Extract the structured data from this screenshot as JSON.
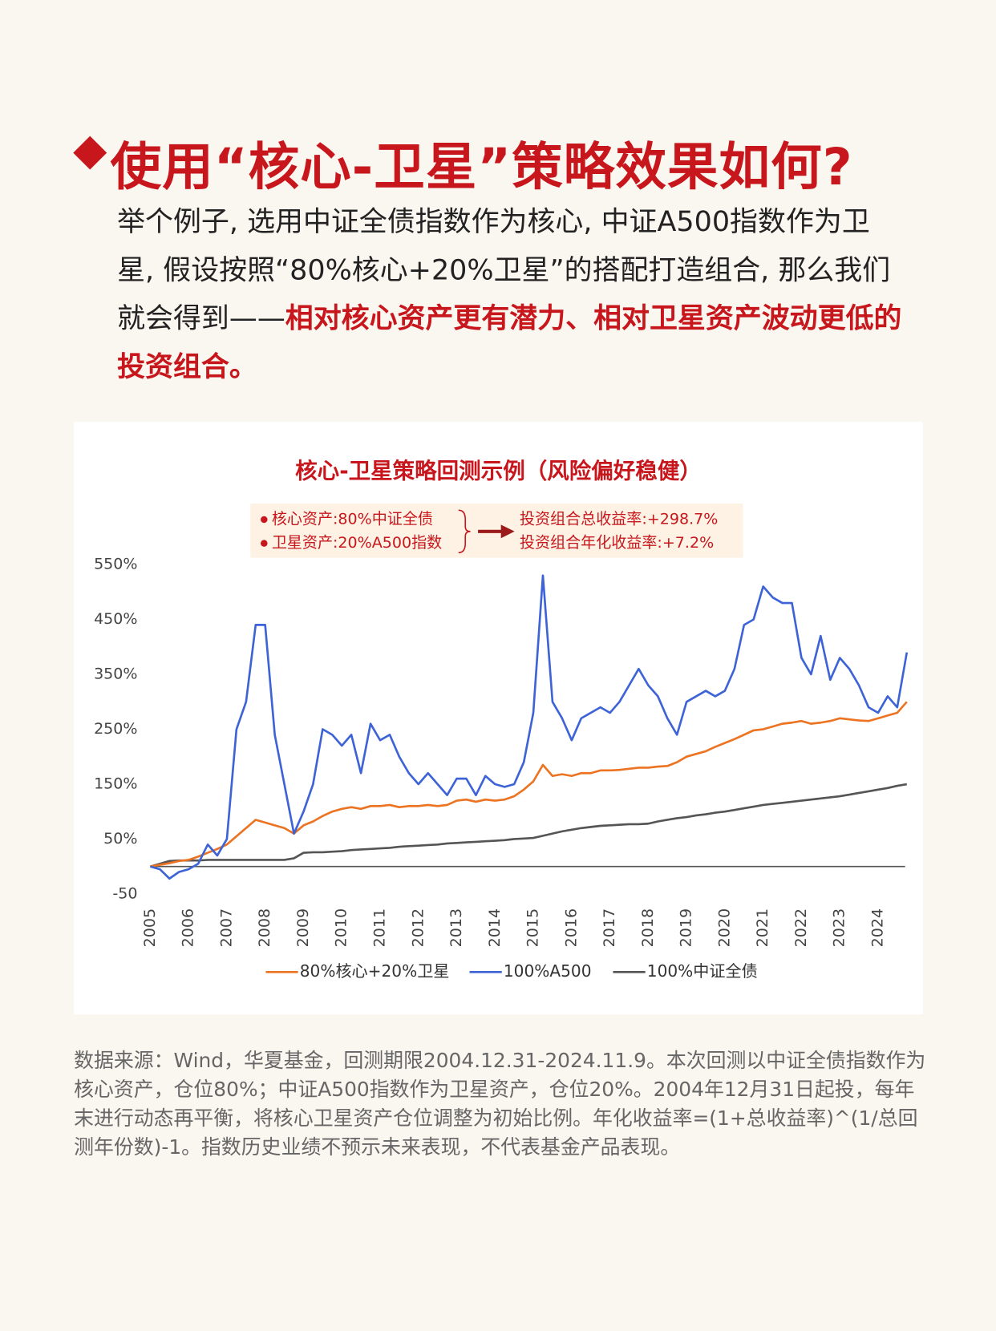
{
  "header": {
    "title": "使用“核心-卫星”策略效果如何?"
  },
  "intro": {
    "text": "举个例子, 选用中证全债指数作为核心, 中证A500指数作为卫星, 假设按照“80%核心+20%卫星”的搭配打造组合, 那么我们就会得到——",
    "highlight": "相对核心资产更有潜力、相对卫星资产波动更低的投资组合。"
  },
  "chart_data": {
    "type": "line",
    "title": "核心-卫星策略回测示例（风险偏好稳健）",
    "annotation": {
      "inputs": [
        "核心资产:80%中证全债",
        "卫星资产:20%A500指数"
      ],
      "results": [
        "投资组合总收益率:+298.7%",
        "投资组合年化收益率:+7.2%"
      ]
    },
    "x": [
      2005,
      2005.25,
      2005.5,
      2005.75,
      2006,
      2006.25,
      2006.5,
      2006.75,
      2007,
      2007.25,
      2007.5,
      2007.75,
      2008,
      2008.25,
      2008.5,
      2008.75,
      2009,
      2009.25,
      2009.5,
      2009.75,
      2010,
      2010.25,
      2010.5,
      2010.75,
      2011,
      2011.25,
      2011.5,
      2011.75,
      2012,
      2012.25,
      2012.5,
      2012.75,
      2013,
      2013.25,
      2013.5,
      2013.75,
      2014,
      2014.25,
      2014.5,
      2014.75,
      2015,
      2015.25,
      2015.5,
      2015.75,
      2016,
      2016.25,
      2016.5,
      2016.75,
      2017,
      2017.25,
      2017.5,
      2017.75,
      2018,
      2018.25,
      2018.5,
      2018.75,
      2019,
      2019.25,
      2019.5,
      2019.75,
      2020,
      2020.25,
      2020.5,
      2020.75,
      2021,
      2021.25,
      2021.5,
      2021.75,
      2022,
      2022.25,
      2022.5,
      2022.75,
      2023,
      2023.25,
      2023.5,
      2023.75,
      2024,
      2024.25,
      2024.5,
      2024.75
    ],
    "series": [
      {
        "name": "80%核心+20%卫星",
        "color": "#ec7322",
        "values": [
          0,
          3,
          6,
          10,
          12,
          18,
          25,
          32,
          40,
          55,
          70,
          85,
          80,
          75,
          70,
          60,
          75,
          82,
          92,
          100,
          105,
          108,
          105,
          110,
          110,
          112,
          108,
          110,
          110,
          112,
          110,
          112,
          120,
          122,
          118,
          122,
          120,
          122,
          128,
          140,
          155,
          185,
          165,
          168,
          165,
          170,
          170,
          175,
          175,
          176,
          178,
          180,
          180,
          182,
          183,
          190,
          200,
          205,
          210,
          218,
          225,
          232,
          240,
          248,
          250,
          255,
          260,
          262,
          265,
          260,
          262,
          265,
          270,
          268,
          266,
          265,
          270,
          275,
          280,
          300
        ]
      },
      {
        "name": "100%A500",
        "color": "#3d63d6",
        "values": [
          0,
          -5,
          -22,
          -10,
          -5,
          5,
          40,
          20,
          50,
          250,
          300,
          440,
          440,
          240,
          150,
          60,
          100,
          150,
          250,
          240,
          220,
          240,
          170,
          260,
          230,
          240,
          200,
          170,
          150,
          170,
          150,
          130,
          160,
          160,
          130,
          165,
          150,
          145,
          150,
          190,
          280,
          530,
          300,
          270,
          230,
          270,
          280,
          290,
          280,
          300,
          330,
          360,
          330,
          310,
          270,
          240,
          300,
          310,
          320,
          310,
          320,
          360,
          440,
          450,
          510,
          490,
          480,
          480,
          380,
          350,
          420,
          340,
          380,
          360,
          330,
          290,
          280,
          310,
          290,
          390
        ]
      },
      {
        "name": "100%中证全债",
        "color": "#555555",
        "values": [
          0,
          5,
          10,
          11,
          11,
          11,
          12,
          12,
          12,
          12,
          12,
          12,
          12,
          12,
          12,
          15,
          25,
          26,
          26,
          27,
          28,
          30,
          31,
          32,
          33,
          34,
          36,
          37,
          38,
          39,
          40,
          42,
          43,
          44,
          45,
          46,
          47,
          48,
          50,
          51,
          52,
          56,
          60,
          64,
          67,
          70,
          72,
          74,
          75,
          76,
          77,
          77,
          78,
          82,
          85,
          88,
          90,
          93,
          95,
          98,
          100,
          103,
          106,
          109,
          112,
          114,
          116,
          118,
          120,
          122,
          124,
          126,
          128,
          131,
          134,
          137,
          140,
          143,
          147,
          150
        ]
      }
    ],
    "xlim": [
      2005,
      2024.75
    ],
    "xticks": [
      2005,
      2006,
      2007,
      2008,
      2009,
      2010,
      2011,
      2012,
      2013,
      2014,
      2015,
      2016,
      2017,
      2018,
      2019,
      2020,
      2021,
      2022,
      2023,
      2024
    ],
    "ylim": [
      -50,
      550
    ],
    "yticks": [
      {
        "value": 550,
        "label": "550%"
      },
      {
        "value": 450,
        "label": "450%"
      },
      {
        "value": 350,
        "label": "350%"
      },
      {
        "value": 250,
        "label": "250%"
      },
      {
        "value": 150,
        "label": "150%"
      },
      {
        "value": 50,
        "label": "50%"
      },
      -50
    ],
    "legend": "bottom"
  },
  "footnote": "数据来源：Wind，华夏基金，回测期限2004.12.31-2024.11.9。本次回测以中证全债指数作为核心资产，仓位80%；中证A500指数作为卫星资产，仓位20%。2004年12月31日起投，每年末进行动态再平衡，将核心卫星资产仓位调整为初始比例。年化收益率=(1+总收益率)^(1/总回测年份数)-1。指数历史业绩不预示未来表现，不代表基金产品表现。"
}
